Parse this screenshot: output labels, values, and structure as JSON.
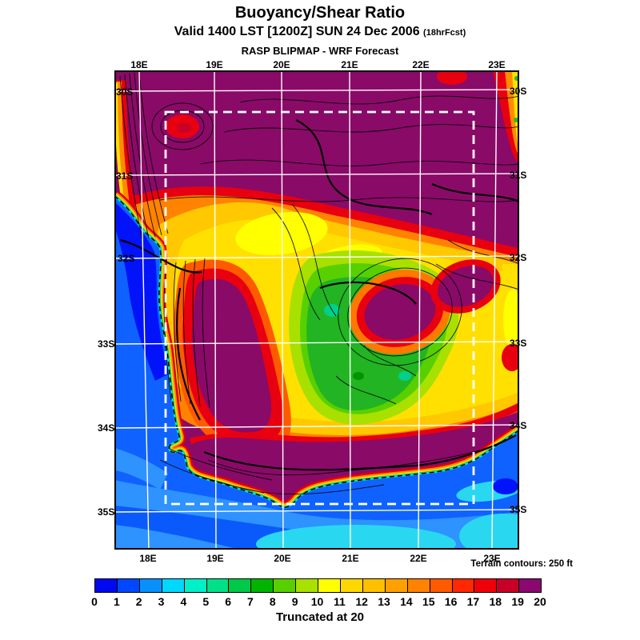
{
  "header": {
    "title": "Buoyancy/Shear Ratio",
    "valid_line": "Valid 1400 LST [1200Z] SUN 24 Dec 2006",
    "fcst_note": "(18hrFcst)",
    "model_line": "RASP BLIPMAP - WRF Forecast"
  },
  "map": {
    "top_ticks": [
      "18E",
      "19E",
      "20E",
      "21E",
      "22E",
      "23E"
    ],
    "bottom_ticks": [
      "18E",
      "19E",
      "20E",
      "21E",
      "22E",
      "23E"
    ],
    "left_ticks": [
      "30S",
      "31S",
      "32S",
      "33S",
      "34S",
      "35S"
    ],
    "right_ticks": [
      "30S",
      "31S",
      "32S",
      "33S",
      "34S",
      "35S"
    ],
    "terrain_note": "Terrain contours: 250 ft"
  },
  "colorbar": {
    "caption": "Truncated at 20"
  },
  "chart_data": {
    "type": "heatmap",
    "title": "Buoyancy/Shear Ratio",
    "subtitle": "Valid 1400 LST [1200Z] SUN 24 Dec 2006 (18hrFcst)",
    "source_line": "RASP BLIPMAP - WRF Forecast",
    "x_ticks": [
      "18E",
      "19E",
      "20E",
      "21E",
      "22E",
      "23E"
    ],
    "y_ticks": [
      "30S",
      "31S",
      "32S",
      "33S",
      "34S",
      "35S"
    ],
    "grid": true,
    "legend_position": "bottom",
    "colorbar": {
      "min": 0,
      "max": 20,
      "tick_step": 1,
      "truncated_at": 20,
      "tick_labels": [
        "0",
        "1",
        "2",
        "3",
        "4",
        "5",
        "6",
        "7",
        "8",
        "9",
        "10",
        "11",
        "12",
        "13",
        "14",
        "15",
        "16",
        "17",
        "18",
        "19",
        "20"
      ],
      "segment_colors": [
        "#0008F0",
        "#0048FF",
        "#0890FF",
        "#00D8FF",
        "#00F0C8",
        "#00E088",
        "#00C848",
        "#00B400",
        "#58D000",
        "#A8E000",
        "#FFFF00",
        "#FFD800",
        "#FFC000",
        "#FFA000",
        "#FF8200",
        "#FF5A00",
        "#FF2800",
        "#F00008",
        "#C80028",
        "#8A0870"
      ]
    },
    "annotations": [
      "Terrain contours: 250 ft",
      "Truncated at 20"
    ],
    "domain_box": "white dashed inner model-domain rectangle",
    "notes": "Filled-contour forecast over the Western Cape, South Africa. Ocean to the southwest and south holds low values (blues/cyan 0-5); a sharp rainbow gradient hugs the coastline; inland values saturate at 20 (dark purple) across the north and along the south-coast mountains; mid values (greens 7-9, yellows 10-12, oranges 13-15) fill central valleys; red hotspots near 30S/18.5E, the northeast corner and the east edge; thin and thick black terrain contours; white lat/lon grid 18E-23E by 30S-35S."
  }
}
